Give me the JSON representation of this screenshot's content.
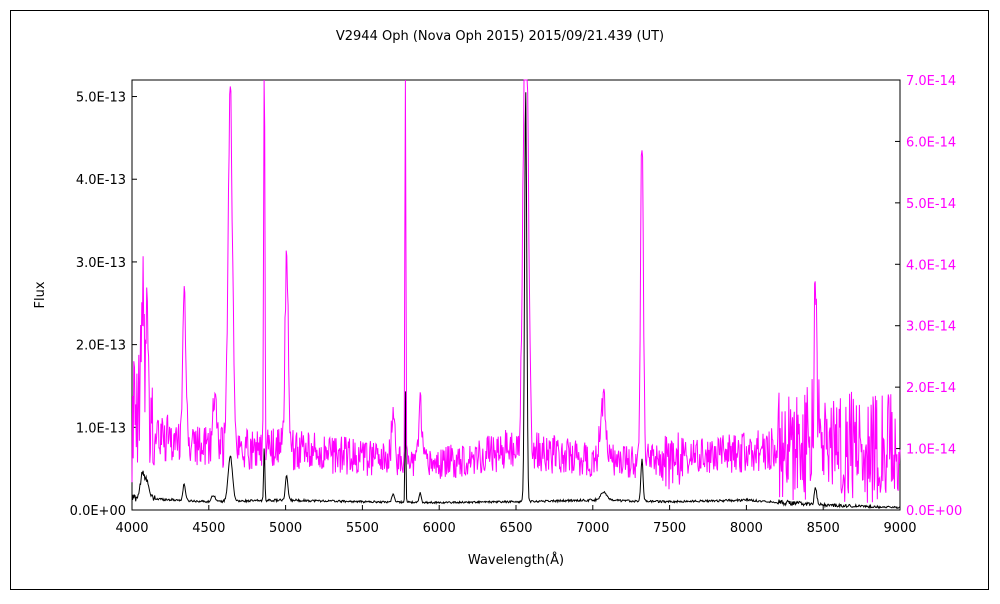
{
  "colors": {
    "background": "#ffffff",
    "frame": "#000000",
    "primary_series": "#000000",
    "secondary_series": "#ff00ff"
  },
  "chart_data": {
    "type": "line",
    "title": "V2944 Oph (Nova Oph 2015)   2015/09/21.439 (UT)",
    "xlabel": "Wavelength(Å)",
    "ylabel": "Flux",
    "ylabel_right": "",
    "xlim": [
      4000,
      9000
    ],
    "ylim": [
      0,
      5.2e-13
    ],
    "ylim_right": [
      0,
      7e-14
    ],
    "grid": false,
    "legend": "none",
    "x_ticks": [
      "4000",
      "4500",
      "5000",
      "5500",
      "6000",
      "6500",
      "7000",
      "7500",
      "8000",
      "8500",
      "9000"
    ],
    "y_ticks_left": [
      "0.0E+00",
      "1.0E-13",
      "2.0E-13",
      "3.0E-13",
      "4.0E-13",
      "5.0E-13"
    ],
    "y_ticks_right": [
      "0.0E+00",
      "1.0E-14",
      "2.0E-14",
      "3.0E-14",
      "4.0E-14",
      "5.0E-14",
      "6.0E-14",
      "7.0E-14"
    ],
    "series": [
      {
        "axis": "left",
        "color": "#000000",
        "continuum": [
          [
            4000,
            1.5e-14
          ],
          [
            4500,
            1e-14
          ],
          [
            5000,
            1.2e-14
          ],
          [
            5500,
            1e-14
          ],
          [
            6000,
            9e-15
          ],
          [
            6500,
            1e-14
          ],
          [
            7000,
            1.2e-14
          ],
          [
            7500,
            1e-14
          ],
          [
            8000,
            1.2e-14
          ],
          [
            8500,
            6e-15
          ],
          [
            9000,
            3e-15
          ]
        ],
        "lines": [
          [
            4070,
            3e-14,
            15
          ],
          [
            4102,
            2e-14,
            10
          ],
          [
            4340,
            2e-14,
            8
          ],
          [
            4530,
            8e-15,
            12
          ],
          [
            4640,
            5.5e-14,
            14
          ],
          [
            4861,
            6.5e-14,
            4
          ],
          [
            5007,
            3e-14,
            8
          ],
          [
            5700,
            1e-14,
            8
          ],
          [
            5780,
            1.35e-13,
            3
          ],
          [
            5876,
            1.2e-14,
            6
          ],
          [
            6563,
            5e-13,
            7
          ],
          [
            7070,
            1e-14,
            20
          ],
          [
            7320,
            5e-14,
            7
          ],
          [
            8450,
            2e-14,
            8
          ]
        ]
      },
      {
        "axis": "right",
        "color": "#ff00ff",
        "continuum": [
          [
            4000,
            1.3e-14
          ],
          [
            4500,
            1e-14
          ],
          [
            5000,
            1e-14
          ],
          [
            5500,
            8.5e-15
          ],
          [
            6000,
            7.5e-15
          ],
          [
            6500,
            1e-14
          ],
          [
            7000,
            8e-15
          ],
          [
            7500,
            8e-15
          ],
          [
            8000,
            9.5e-15
          ],
          [
            8500,
            1.1e-14
          ],
          [
            9000,
            1e-14
          ]
        ],
        "lines": [
          [
            4070,
            2e-14,
            12
          ],
          [
            4102,
            1.5e-14,
            10
          ],
          [
            4340,
            2.6e-14,
            10
          ],
          [
            4540,
            8e-15,
            15
          ],
          [
            4640,
            5.8e-14,
            14
          ],
          [
            4861,
            7e-14,
            4
          ],
          [
            5007,
            3.3e-14,
            10
          ],
          [
            5700,
            9e-15,
            10
          ],
          [
            5780,
            8e-14,
            3
          ],
          [
            5876,
            9e-15,
            10
          ],
          [
            6563,
            8e-14,
            16
          ],
          [
            7070,
            9e-15,
            20
          ],
          [
            7320,
            5.2e-14,
            9
          ],
          [
            8450,
            2.9e-14,
            9
          ]
        ]
      }
    ]
  }
}
